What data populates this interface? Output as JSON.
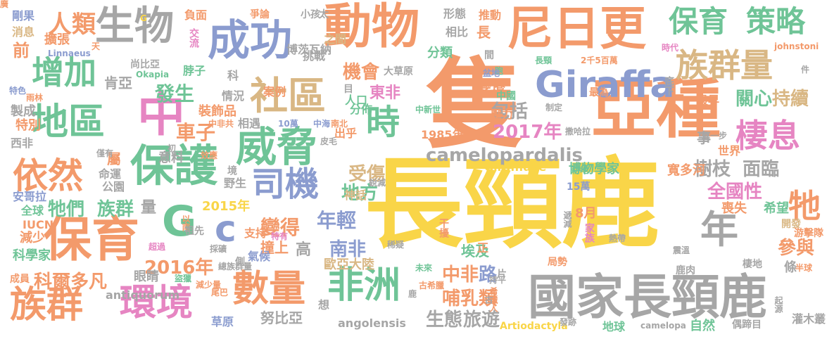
{
  "colors": {
    "yellow": "#f9d548",
    "orange": "#f39a6b",
    "green": "#6fc497",
    "blue": "#8b9ccf",
    "pink": "#e685c2",
    "gray": "#a6a6a6",
    "tan": "#d9b784"
  },
  "words": [
    {
      "text": "長頸鹿",
      "c": "yellow"
    },
    {
      "text": "隻",
      "c": "orange"
    },
    {
      "text": "亞種",
      "c": "orange"
    },
    {
      "text": "國家長頸鹿",
      "c": "gray"
    },
    {
      "text": "動物",
      "c": "orange"
    },
    {
      "text": "尼日更",
      "c": "orange"
    },
    {
      "text": "生物",
      "c": "gray"
    },
    {
      "text": "成功",
      "c": "blue"
    },
    {
      "text": "中",
      "c": "pink"
    },
    {
      "text": "保護",
      "c": "green"
    },
    {
      "text": "保育",
      "c": "orange"
    },
    {
      "text": "G",
      "c": "green"
    },
    {
      "text": "c",
      "c": "blue"
    },
    {
      "text": "威脅",
      "c": "green"
    },
    {
      "text": "社區",
      "c": "tan"
    },
    {
      "text": "時",
      "c": "green"
    },
    {
      "text": "Giraffa",
      "c": "blue"
    },
    {
      "text": "族群量",
      "c": "tan"
    },
    {
      "text": "保育",
      "c": "green"
    },
    {
      "text": "策略",
      "c": "green"
    },
    {
      "text": "棲息",
      "c": "pink"
    },
    {
      "text": "地區",
      "c": "green"
    },
    {
      "text": "增加",
      "c": "green"
    },
    {
      "text": "依然",
      "c": "orange"
    },
    {
      "text": "司機",
      "c": "blue"
    },
    {
      "text": "數量",
      "c": "orange"
    },
    {
      "text": "非洲",
      "c": "green"
    },
    {
      "text": "環境",
      "c": "pink"
    },
    {
      "text": "族群",
      "c": "orange"
    },
    {
      "text": "年",
      "c": "gray"
    },
    {
      "text": "牠",
      "c": "orange"
    },
    {
      "text": "camelopardalis",
      "c": "gray"
    },
    {
      "text": "人類",
      "c": "orange"
    },
    {
      "text": "肯亞",
      "c": "gray"
    },
    {
      "text": "發生",
      "c": "green"
    },
    {
      "text": "車子",
      "c": "orange"
    },
    {
      "text": "機會",
      "c": "orange"
    },
    {
      "text": "東非",
      "c": "pink"
    },
    {
      "text": "2017年",
      "c": "pink"
    },
    {
      "text": "包括",
      "c": "gray"
    },
    {
      "text": "關心",
      "c": "green"
    },
    {
      "text": "持續",
      "c": "tan"
    },
    {
      "text": "樹枝",
      "c": "gray"
    },
    {
      "text": "面臨",
      "c": "gray"
    },
    {
      "text": "全國性",
      "c": "pink"
    },
    {
      "text": "參與",
      "c": "orange"
    },
    {
      "text": "2016年",
      "c": "orange"
    },
    {
      "text": "牠們",
      "c": "green"
    },
    {
      "text": "族群",
      "c": "green"
    },
    {
      "text": "量",
      "c": "gray"
    },
    {
      "text": "變得",
      "c": "orange"
    },
    {
      "text": "年輕",
      "c": "blue"
    },
    {
      "text": "地方",
      "c": "green"
    },
    {
      "text": "受傷",
      "c": "tan"
    },
    {
      "text": "中非",
      "c": "orange"
    },
    {
      "text": "路",
      "c": "blue"
    },
    {
      "text": "哺乳類",
      "c": "orange"
    },
    {
      "text": "南非",
      "c": "blue"
    },
    {
      "text": "科爾多凡",
      "c": "orange"
    },
    {
      "text": "生態",
      "c": "gray"
    },
    {
      "text": "旅遊",
      "c": "gray"
    },
    {
      "text": "努比亞",
      "c": "gray"
    },
    {
      "text": "angolensis",
      "c": "gray"
    },
    {
      "text": "歐亞大陸",
      "c": "tan"
    },
    {
      "text": "埃及",
      "c": "green"
    },
    {
      "text": "高",
      "c": "gray"
    },
    {
      "text": "撞上",
      "c": "orange"
    },
    {
      "text": "眼睛",
      "c": "gray"
    },
    {
      "text": "科學家",
      "c": "green"
    },
    {
      "text": "減少",
      "c": "orange"
    },
    {
      "text": "IUCN",
      "c": "orange"
    },
    {
      "text": "全球",
      "c": "green"
    },
    {
      "text": "公園",
      "c": "gray"
    },
    {
      "text": "命運",
      "c": "gray"
    },
    {
      "text": "野生",
      "c": "gray"
    },
    {
      "text": "2015年",
      "c": "yellow"
    },
    {
      "text": "支持",
      "c": "orange"
    },
    {
      "text": "氣候",
      "c": "blue"
    },
    {
      "text": "條",
      "c": "gray"
    },
    {
      "text": "喪失",
      "c": "orange"
    },
    {
      "text": "希望",
      "c": "green"
    },
    {
      "text": "博物學家",
      "c": "green"
    },
    {
      "text": "寬多河",
      "c": "orange"
    },
    {
      "text": "Giraffidae",
      "c": "yellow"
    },
    {
      "text": "1985年",
      "c": "orange"
    },
    {
      "text": "出乎",
      "c": "orange"
    },
    {
      "text": "分佈",
      "c": "green"
    },
    {
      "text": "人口",
      "c": "green"
    },
    {
      "text": "分類",
      "c": "green"
    },
    {
      "text": "變遷",
      "c": "orange"
    },
    {
      "text": "形態",
      "c": "gray"
    },
    {
      "text": "推動",
      "c": "orange"
    },
    {
      "text": "相比",
      "c": "gray"
    },
    {
      "text": "長",
      "c": "orange"
    },
    {
      "text": "博茨瓦納",
      "c": "gray"
    },
    {
      "text": "挑戰",
      "c": "gray"
    },
    {
      "text": "之間",
      "c": "tan"
    },
    {
      "text": "大草原",
      "c": "gray"
    },
    {
      "text": "案例",
      "c": "orange"
    },
    {
      "text": "科",
      "c": "gray"
    },
    {
      "text": "情況",
      "c": "gray"
    },
    {
      "text": "裝飾品",
      "c": "orange"
    },
    {
      "text": "尚比亞",
      "c": "gray"
    },
    {
      "text": "脖子",
      "c": "green"
    },
    {
      "text": "剛果",
      "c": "blue"
    },
    {
      "text": "消息",
      "c": "tan"
    },
    {
      "text": "擴張",
      "c": "orange"
    },
    {
      "text": "前",
      "c": "orange"
    },
    {
      "text": "Linnaeus",
      "c": "blue"
    },
    {
      "text": "製成",
      "c": "gray"
    },
    {
      "text": "特別",
      "c": "orange"
    },
    {
      "text": "西非",
      "c": "gray"
    },
    {
      "text": "屬",
      "c": "orange"
    },
    {
      "text": "意料",
      "c": "gray"
    },
    {
      "text": "相遇",
      "c": "gray"
    },
    {
      "text": "草原",
      "c": "blue"
    },
    {
      "text": "想",
      "c": "gray"
    },
    {
      "text": "地球",
      "c": "green"
    },
    {
      "text": "camelopa",
      "c": "gray"
    },
    {
      "text": "自然",
      "c": "green"
    },
    {
      "text": "灌木叢",
      "c": "gray"
    },
    {
      "text": "世界",
      "c": "orange"
    },
    {
      "text": "事",
      "c": "gray"
    },
    {
      "text": "最早",
      "c": "orange"
    },
    {
      "text": "壓力",
      "c": "orange"
    },
    {
      "text": "神話",
      "c": "tan"
    },
    {
      "text": "johnstoni",
      "c": "orange"
    },
    {
      "text": "棲地",
      "c": "gray"
    },
    {
      "text": "鹿肉",
      "c": "gray"
    },
    {
      "text": "持平",
      "c": "gray"
    },
    {
      "text": "片",
      "c": "gray"
    },
    {
      "text": "8月",
      "c": "orange"
    },
    {
      "text": "正",
      "c": "orange"
    },
    {
      "text": "時代",
      "c": "pink"
    },
    {
      "text": "件",
      "c": "gray"
    },
    {
      "text": "半球",
      "c": "orange"
    },
    {
      "text": "開發",
      "c": "tan"
    },
    {
      "text": "游擊隊",
      "c": "orange"
    },
    {
      "text": "局勢",
      "c": "orange"
    },
    {
      "text": "偶蹄目",
      "c": "gray"
    },
    {
      "text": "Artiodactyla",
      "c": "yellow"
    },
    {
      "text": "安哥拉",
      "c": "blue"
    },
    {
      "text": "Okapia",
      "c": "green"
    },
    {
      "text": "特色",
      "c": "blue"
    },
    {
      "text": "雨林",
      "c": "orange"
    },
    {
      "text": "antiquorum",
      "c": "gray"
    },
    {
      "text": "盜獵",
      "c": "green"
    },
    {
      "text": "減少量",
      "c": "orange"
    },
    {
      "text": "成員",
      "c": "orange"
    },
    {
      "text": "G",
      "c": "yellow"
    },
    {
      "text": "負面",
      "c": "orange"
    },
    {
      "text": "爭論",
      "c": "orange"
    },
    {
      "text": "小孩",
      "c": "gray"
    },
    {
      "text": "太",
      "c": "gray"
    },
    {
      "text": "天",
      "c": "orange"
    },
    {
      "text": "交流",
      "c": "pink"
    },
    {
      "text": "間",
      "c": "gray"
    },
    {
      "text": "跑",
      "c": "green"
    },
    {
      "text": "中國",
      "c": "green"
    },
    {
      "text": "長頸",
      "c": "green"
    },
    {
      "text": "2千5百萬",
      "c": "orange"
    },
    {
      "text": "最為",
      "c": "orange"
    },
    {
      "text": "底下",
      "c": "gray"
    },
    {
      "text": "制定",
      "c": "gray"
    },
    {
      "text": "撒哈拉",
      "c": "gray"
    },
    {
      "text": "進一步",
      "c": "gray"
    },
    {
      "text": "耕地",
      "c": "green"
    },
    {
      "text": "15萬",
      "c": "blue"
    },
    {
      "text": "干擾",
      "c": "orange"
    },
    {
      "text": "遞減",
      "c": "gray"
    },
    {
      "text": "熱帶",
      "c": "gray"
    },
    {
      "text": "以南",
      "c": "orange"
    },
    {
      "text": "祖先",
      "c": "gray"
    },
    {
      "text": "採礦",
      "c": "gray"
    },
    {
      "text": "超過",
      "c": "pink"
    },
    {
      "text": "特有",
      "c": "pink"
    },
    {
      "text": "總族群量",
      "c": "gray"
    },
    {
      "text": "未來",
      "c": "green"
    },
    {
      "text": "古希臘",
      "c": "orange"
    },
    {
      "text": "希臘人",
      "c": "orange"
    },
    {
      "text": "稀疑",
      "c": "gray"
    },
    {
      "text": "尾巴",
      "c": "orange"
    },
    {
      "text": "僅有",
      "c": "gray"
    },
    {
      "text": "初",
      "c": "gray"
    },
    {
      "text": "效應",
      "c": "orange"
    },
    {
      "text": "南北",
      "c": "orange"
    },
    {
      "text": "中非共",
      "c": "orange"
    },
    {
      "text": "10萬",
      "c": "blue"
    },
    {
      "text": "中海",
      "c": "blue"
    },
    {
      "text": "中新世",
      "c": "green"
    },
    {
      "text": "皮毛",
      "c": "gray"
    },
    {
      "text": "起源",
      "c": "gray"
    },
    {
      "text": "發跡",
      "c": "gray"
    },
    {
      "text": "銳減",
      "c": "gray"
    },
    {
      "text": "盆地",
      "c": "blue"
    },
    {
      "text": "目",
      "c": "gray"
    },
    {
      "text": "境",
      "c": "gray"
    },
    {
      "text": "側",
      "c": "gray"
    },
    {
      "text": "古",
      "c": "gray"
    },
    {
      "text": "家族",
      "c": "pink"
    },
    {
      "text": "鹿",
      "c": "gray"
    },
    {
      "text": "震溫",
      "c": "gray"
    },
    {
      "text": "廣",
      "c": "orange"
    }
  ]
}
